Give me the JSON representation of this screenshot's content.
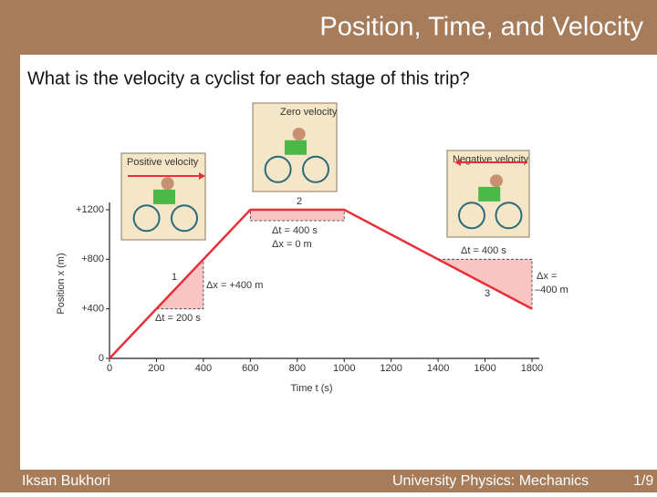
{
  "slide": {
    "title": "Position, Time, and Velocity",
    "question": "What is the velocity a cyclist  for each stage of this trip?",
    "footer_left": "Iksan Bukhori",
    "footer_center": "University Physics: Mechanics",
    "page": "1/9"
  },
  "chart_data": {
    "type": "line",
    "x": [
      0,
      200,
      400,
      600,
      1000,
      1400,
      1800
    ],
    "values": [
      0,
      400,
      800,
      1200,
      1200,
      800,
      400
    ],
    "color": "#e8303a",
    "xlim": [
      0,
      1800
    ],
    "xticks": [
      0,
      200,
      400,
      600,
      800,
      1000,
      1200,
      1400,
      1600,
      1800
    ],
    "ylim": [
      0,
      1200
    ],
    "yticks": [
      0,
      {
        "value": 400,
        "label": "+400"
      },
      {
        "value": 800,
        "label": "+800"
      },
      {
        "value": 1200,
        "label": "+1200"
      }
    ],
    "xlabel": "Time t (s)",
    "ylabel": "Position x (m)",
    "annotations": [
      "1",
      "Δx = +400 m",
      "Δt = 200 s",
      "2",
      "Δt = 400 s",
      "Δx = 0 m",
      "Δt = 400 s",
      "3",
      "Δx =",
      "–400 m"
    ],
    "pictures": [
      "Positive velocity",
      "Zero velocity",
      "Negative velocity"
    ]
  }
}
